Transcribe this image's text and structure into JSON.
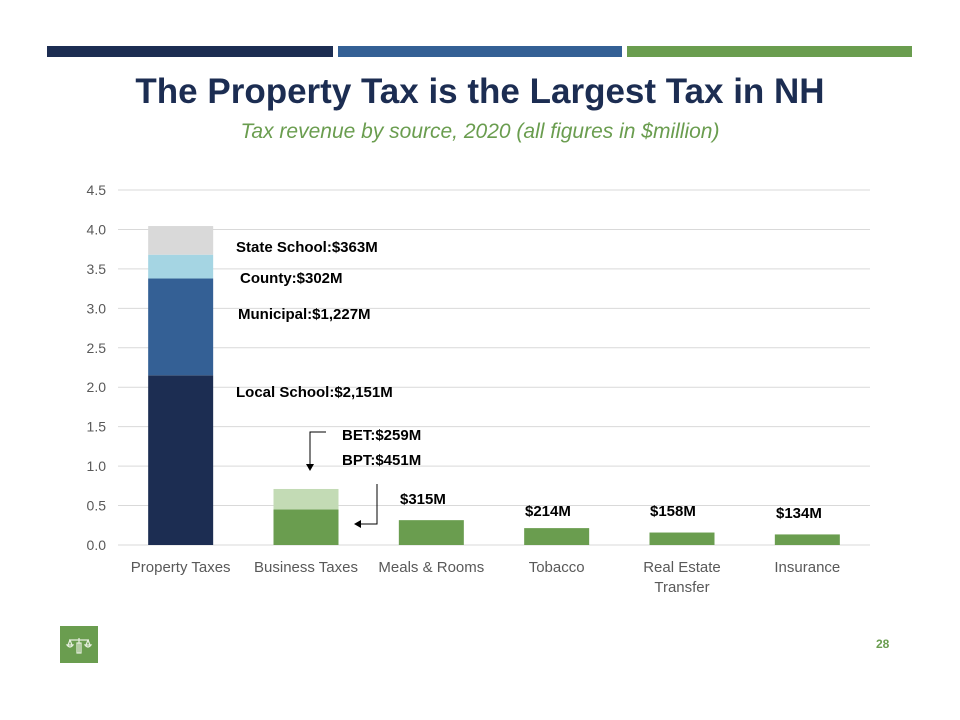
{
  "header": {
    "title": "The Property Tax is the Largest Tax in NH",
    "subtitle": "Tax revenue by source, 2020 (all figures in $million)"
  },
  "colors": {
    "navy": "#1c2d52",
    "blue": "#346095",
    "light_blue": "#a5d5e3",
    "light_gray": "#d9d9d9",
    "green": "#6a9d4f",
    "light_green": "#c3dbb5",
    "grid": "#d9d9d9"
  },
  "footer": {
    "page_number": "28",
    "logo_icon": "scales-of-justice-icon"
  },
  "chart_data": {
    "type": "bar",
    "stacked": true,
    "title": "Tax revenue by source, 2020 (all figures in $million)",
    "xlabel": "",
    "ylabel": "",
    "ylim": [
      0,
      4.5
    ],
    "yticks": [
      "0.0",
      "0.5",
      "1.0",
      "1.5",
      "2.0",
      "2.5",
      "3.0",
      "3.5",
      "4.0",
      "4.5"
    ],
    "grid": true,
    "categories": [
      "Property Taxes",
      "Business Taxes",
      "Meals & Rooms",
      "Tobacco",
      "Real Estate Transfer",
      "Insurance"
    ],
    "category_labels": [
      [
        "Property Taxes"
      ],
      [
        "Business Taxes"
      ],
      [
        "Meals & Rooms"
      ],
      [
        "Tobacco"
      ],
      [
        "Real Estate",
        "Transfer"
      ],
      [
        "Insurance"
      ]
    ],
    "bars": [
      {
        "category": "Property Taxes",
        "segments": [
          {
            "name": "Local School",
            "value": 2.151,
            "color": "#1c2d52",
            "label": "Local School:$2,151M"
          },
          {
            "name": "Municipal",
            "value": 1.227,
            "color": "#346095",
            "label": "Municipal:$1,227M"
          },
          {
            "name": "County",
            "value": 0.302,
            "color": "#a5d5e3",
            "label": "County:$302M"
          },
          {
            "name": "State School",
            "value": 0.363,
            "color": "#d9d9d9",
            "label": "State School:$363M"
          }
        ]
      },
      {
        "category": "Business Taxes",
        "segments": [
          {
            "name": "BPT",
            "value": 0.451,
            "color": "#6a9d4f",
            "label": "BPT:$451M"
          },
          {
            "name": "BET",
            "value": 0.259,
            "color": "#c3dbb5",
            "label": "BET:$259M"
          }
        ]
      },
      {
        "category": "Meals & Rooms",
        "segments": [
          {
            "name": "Meals & Rooms",
            "value": 0.315,
            "color": "#6a9d4f",
            "label": "$315M"
          }
        ]
      },
      {
        "category": "Tobacco",
        "segments": [
          {
            "name": "Tobacco",
            "value": 0.214,
            "color": "#6a9d4f",
            "label": "$214M"
          }
        ]
      },
      {
        "category": "Real Estate Transfer",
        "segments": [
          {
            "name": "Real Estate Transfer",
            "value": 0.158,
            "color": "#6a9d4f",
            "label": "$158M"
          }
        ]
      },
      {
        "category": "Insurance",
        "segments": [
          {
            "name": "Insurance",
            "value": 0.134,
            "color": "#6a9d4f",
            "label": "$134M"
          }
        ]
      }
    ]
  }
}
